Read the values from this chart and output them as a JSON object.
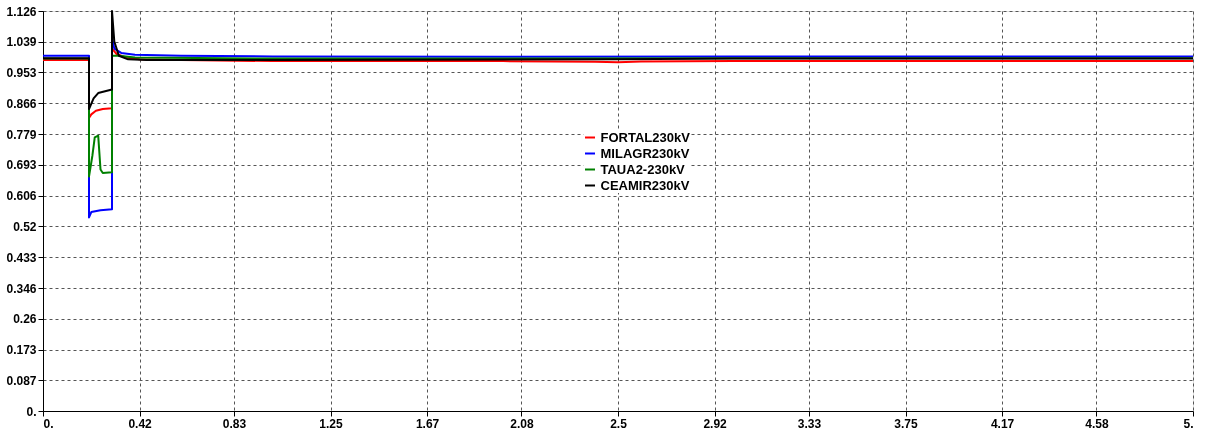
{
  "chart_data": {
    "type": "line",
    "xlim": [
      0,
      5
    ],
    "ylim": [
      0,
      1.126
    ],
    "xticks": [
      {
        "value": 0,
        "label": "0."
      },
      0.42,
      0.83,
      1.25,
      1.67,
      2.08,
      2.5,
      2.92,
      3.33,
      3.75,
      4.17,
      4.58,
      {
        "value": 5,
        "label": "5."
      }
    ],
    "yticks": [
      {
        "value": 0,
        "label": "0."
      },
      0.087,
      0.173,
      0.26,
      0.346,
      0.433,
      0.52,
      0.606,
      0.693,
      0.779,
      0.866,
      0.953,
      1.039,
      1.126
    ],
    "grid": true,
    "legend": "center",
    "marker": "none",
    "line_style": "solid",
    "series": [
      {
        "name": "FORTAL230kV",
        "color": "#ff0000",
        "x": [
          0,
          0.2,
          0.2,
          0.21,
          0.23,
          0.26,
          0.3,
          0.3,
          0.32,
          0.36,
          0.42,
          0.6,
          1.0,
          2.0,
          2.4,
          2.5,
          2.6,
          3.0,
          5.0
        ],
        "values": [
          0.988,
          0.988,
          0.825,
          0.835,
          0.845,
          0.85,
          0.852,
          1.02,
          1.005,
          0.995,
          0.99,
          0.988,
          0.985,
          0.985,
          0.983,
          0.982,
          0.984,
          0.985,
          0.985
        ]
      },
      {
        "name": "MILAGR230kV",
        "color": "#0000ff",
        "x": [
          0,
          0.2,
          0.2,
          0.21,
          0.25,
          0.3,
          0.3,
          0.31,
          0.34,
          0.4,
          0.6,
          1,
          2,
          3,
          5
        ],
        "values": [
          1.0,
          1.0,
          0.545,
          0.56,
          0.565,
          0.568,
          1.05,
          1.02,
          1.008,
          1.003,
          1.0,
          0.998,
          0.997,
          0.998,
          0.998
        ]
      },
      {
        "name": "TAUA2-230kV",
        "color": "#008000",
        "x": [
          0,
          0.2,
          0.2,
          0.215,
          0.225,
          0.24,
          0.25,
          0.26,
          0.3,
          0.3,
          0.33,
          0.4,
          1,
          3,
          5
        ],
        "values": [
          0.992,
          0.992,
          0.66,
          0.72,
          0.77,
          0.775,
          0.68,
          0.67,
          0.672,
          1.0,
          1.0,
          0.995,
          0.992,
          0.993,
          0.993
        ]
      },
      {
        "name": "CEAMIR230kV",
        "color": "#000000",
        "x": [
          0,
          0.2,
          0.2,
          0.22,
          0.24,
          0.27,
          0.3,
          0.3,
          0.31,
          0.33,
          0.37,
          0.45,
          1,
          2.5,
          3,
          5
        ],
        "values": [
          0.993,
          0.993,
          0.85,
          0.88,
          0.895,
          0.9,
          0.905,
          1.126,
          1.04,
          1.0,
          0.99,
          0.988,
          0.988,
          0.99,
          0.992,
          0.992
        ]
      }
    ]
  }
}
